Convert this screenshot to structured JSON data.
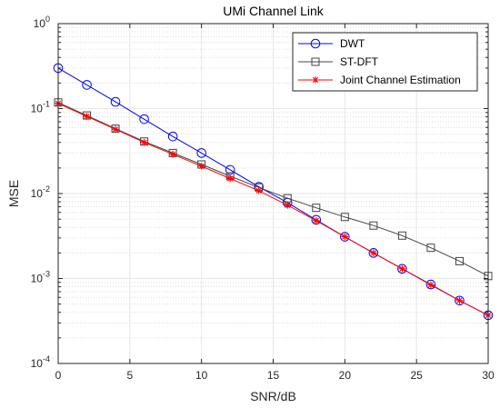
{
  "chart_data": {
    "type": "line",
    "title": "UMi Channel Link",
    "xlabel": "SNR/dB",
    "ylabel": "MSE",
    "xlim": [
      0,
      30
    ],
    "ylim_exponents": [
      -4,
      0
    ],
    "yscale": "log",
    "grid": true,
    "legend_position": "top-right",
    "x_ticks": [
      "0",
      "5",
      "10",
      "15",
      "20",
      "25",
      "30"
    ],
    "y_ticks": [
      {
        "base": "10",
        "exp": "-4"
      },
      {
        "base": "10",
        "exp": "-3"
      },
      {
        "base": "10",
        "exp": "-2"
      },
      {
        "base": "10",
        "exp": "-1"
      },
      {
        "base": "10",
        "exp": "0"
      }
    ],
    "x": [
      0,
      2,
      4,
      6,
      8,
      10,
      12,
      14,
      16,
      18,
      20,
      22,
      24,
      26,
      28,
      30
    ],
    "series": [
      {
        "name": "DWT",
        "color": "#0000ff",
        "marker": "circle",
        "values": [
          0.3,
          0.19,
          0.12,
          0.075,
          0.047,
          0.03,
          0.019,
          0.012,
          0.0078,
          0.0049,
          0.0031,
          0.002,
          0.0013,
          0.00085,
          0.00055,
          0.00037
        ]
      },
      {
        "name": "ST-DFT",
        "color": "#444444",
        "marker": "square",
        "values": [
          0.118,
          0.083,
          0.058,
          0.041,
          0.03,
          0.022,
          0.016,
          0.0118,
          0.0088,
          0.0068,
          0.0053,
          0.0042,
          0.0032,
          0.0023,
          0.0016,
          0.00107
        ]
      },
      {
        "name": "Joint Channel Estimation",
        "color": "#ff0000",
        "marker": "asterisk",
        "values": [
          0.115,
          0.081,
          0.057,
          0.04,
          0.029,
          0.021,
          0.015,
          0.0108,
          0.0073,
          0.0048,
          0.0031,
          0.002,
          0.0013,
          0.00084,
          0.00055,
          0.00037
        ]
      }
    ]
  }
}
